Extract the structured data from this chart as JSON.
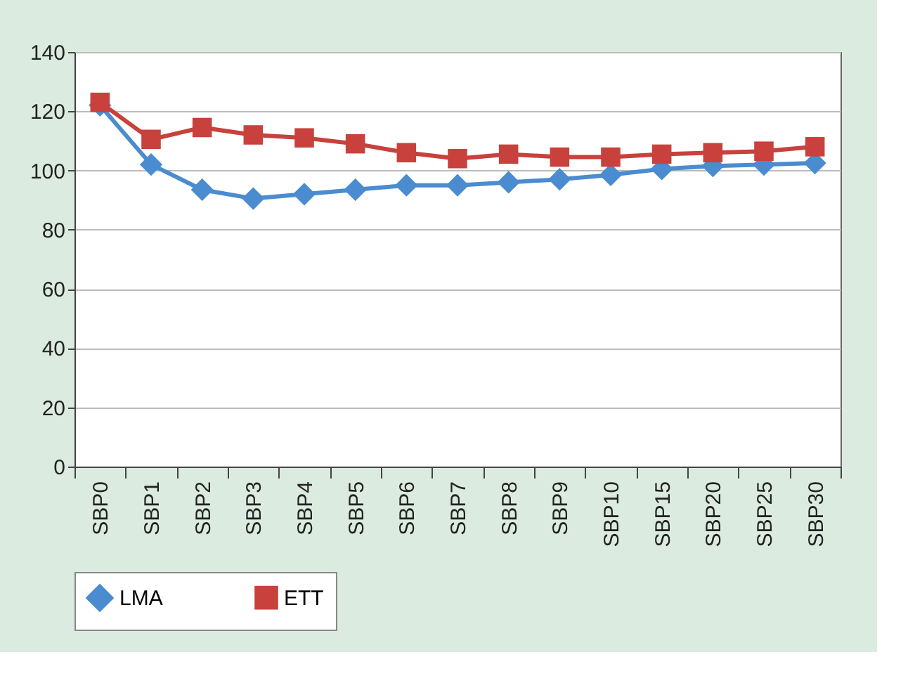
{
  "chart_data": {
    "type": "line",
    "categories": [
      "SBP0",
      "SBP1",
      "SBP2",
      "SBP3",
      "SBP4",
      "SBP5",
      "SBP6",
      "SBP7",
      "SBP8",
      "SBP9",
      "SBP10",
      "SBP15",
      "SBP20",
      "SBP25",
      "SBP30"
    ],
    "series": [
      {
        "name": "LMA",
        "color": "#4a8ccf",
        "marker": "diamond",
        "values": [
          122,
          102,
          93.5,
          90.5,
          92,
          93.5,
          95,
          95,
          96,
          97,
          98.5,
          100.5,
          101.5,
          102,
          102.5
        ]
      },
      {
        "name": "ETT",
        "color": "#c8413c",
        "marker": "square",
        "values": [
          123,
          110.5,
          114.5,
          112,
          111,
          109,
          106,
          104,
          105.5,
          104.5,
          104.5,
          105.5,
          106,
          106.5,
          108
        ]
      }
    ],
    "ylim": [
      0,
      140
    ],
    "yticks": [
      0,
      20,
      40,
      60,
      80,
      100,
      120,
      140
    ],
    "grid": "y",
    "legend": "bottom",
    "line_style": "solid"
  }
}
